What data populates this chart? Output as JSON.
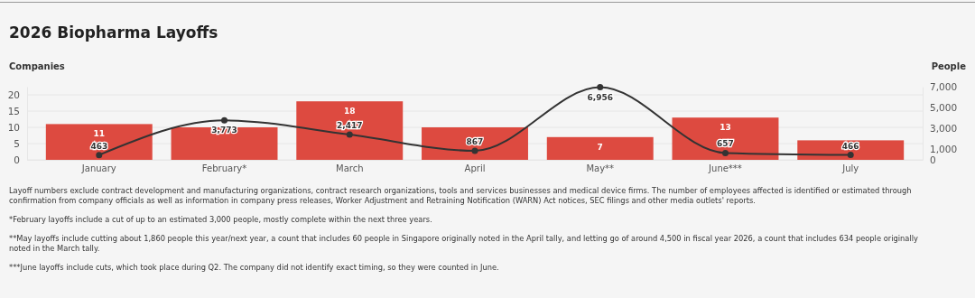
{
  "chart_data": {
    "type": "bar",
    "title": "2026 Biopharma Layoffs",
    "ylabel": "Companies",
    "y2label": "People",
    "categories": [
      "January",
      "February*",
      "March",
      "April",
      "May**",
      "June***",
      "July"
    ],
    "series": [
      {
        "color": "#dd4a40",
        "values": [
          11,
          10,
          18,
          10,
          7,
          13,
          6
        ],
        "value_labels": [
          "11",
          null,
          "18",
          null,
          "7",
          "13",
          null
        ]
      },
      {
        "type": "line",
        "axis": "y2",
        "color": "#333333",
        "marker": "circle",
        "values": [
          463,
          3773,
          2417,
          867,
          6956,
          657,
          466
        ],
        "value_labels": [
          "463",
          "3,773",
          "2,417",
          "867",
          "6,956",
          "657",
          "466"
        ]
      }
    ],
    "ylim": [
      0,
      22.5
    ],
    "yticks": [
      0,
      5,
      10,
      15,
      20
    ],
    "y2lim": [
      0,
      7000
    ],
    "y2ticks": [
      {
        "value": 0,
        "label": "0"
      },
      {
        "value": 1000,
        "label": "1,000"
      },
      {
        "value": 3000,
        "label": "3,000"
      },
      {
        "value": 5000,
        "label": "5,000"
      },
      {
        "value": 7000,
        "label": "7,000"
      }
    ],
    "grid": "y",
    "annotations": [
      "Layoff numbers exclude contract development and manufacturing organizations, contract research organizations, tools and services businesses and medical device firms. The number of employees affected is identified or estimated through confirmation from company officials as well as information in company press releases, Worker Adjustment and Retraining Notification (WARN) Act notices, SEC filings and other media outlets' reports.",
      "*February layoffs include a cut of up to an estimated 3,000 people, mostly complete within the next three years.",
      "**May layoffs include cutting about 1,860 people this year/next year, a count that includes 60 people in Singapore originally noted in the April tally, and letting go of around 4,500 in fiscal year 2026, a count that includes 634 people originally noted in the March tally.",
      "***June layoffs include cuts, which took place during Q2. The company did not identify exact timing, so they were counted in June."
    ]
  }
}
